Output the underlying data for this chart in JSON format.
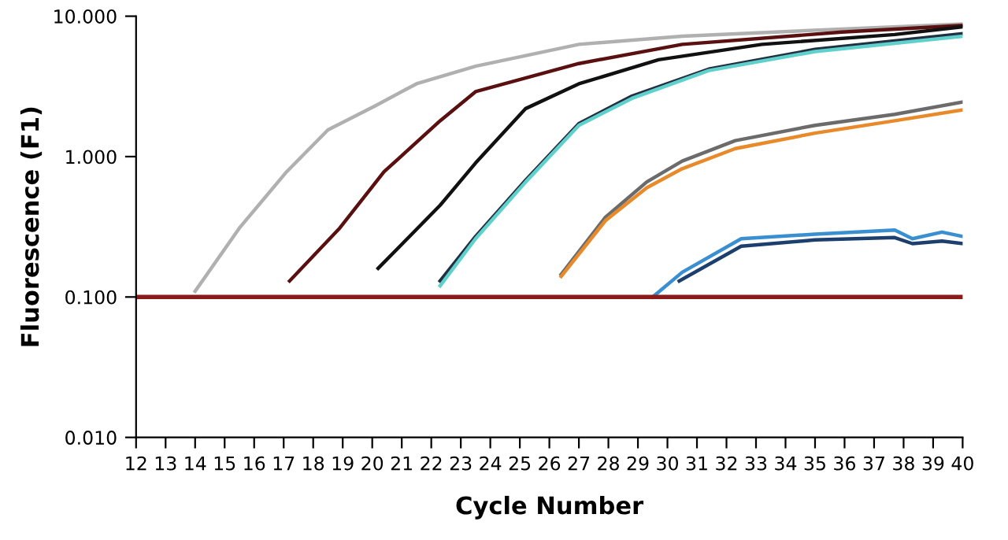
{
  "chart_data": {
    "type": "line",
    "xlabel": "Cycle Number",
    "ylabel": "Fluorescence (F1)",
    "log": "y",
    "xlim": [
      12,
      40
    ],
    "xticks": [
      12,
      13,
      14,
      15,
      16,
      17,
      18,
      19,
      20,
      21,
      22,
      23,
      24,
      25,
      26,
      27,
      28,
      29,
      30,
      31,
      32,
      33,
      34,
      35,
      36,
      37,
      38,
      39,
      40
    ],
    "ylim": [
      0.01,
      10
    ],
    "yticks": [
      {
        "value": 0.01,
        "label": "0.010"
      },
      {
        "value": 0.1,
        "label": "0.100"
      },
      {
        "value": 1,
        "label": "1.000"
      },
      {
        "value": 10,
        "label": "10.000"
      }
    ],
    "grid": false,
    "legend": false,
    "marker": "none",
    "line_style": "solid",
    "ref_lines": [
      {
        "axis": "y",
        "value": 0.1,
        "color": "#8b1a1a"
      }
    ],
    "series": [
      {
        "color": "#b0b0b0",
        "x": [
          14.0,
          15.5,
          17.1,
          18.5,
          20.1,
          21.5,
          23.5,
          27.0,
          30.5,
          35.9,
          40
        ],
        "values": [
          0.11,
          0.31,
          0.78,
          1.55,
          2.3,
          3.3,
          4.4,
          6.3,
          7.2,
          8.1,
          8.8
        ]
      },
      {
        "color": "#5a1010",
        "x": [
          17.2,
          18.9,
          20.4,
          22.3,
          23.5,
          27.0,
          30.5,
          35.9,
          40
        ],
        "values": [
          0.13,
          0.31,
          0.78,
          1.8,
          2.9,
          4.6,
          6.3,
          7.7,
          8.6
        ]
      },
      {
        "color": "#111111",
        "x": [
          20.2,
          22.3,
          23.5,
          25.2,
          27.0,
          29.7,
          33.2,
          37.7,
          40
        ],
        "values": [
          0.16,
          0.45,
          0.9,
          2.2,
          3.3,
          4.9,
          6.3,
          7.4,
          8.4
        ]
      },
      {
        "color": "#203040",
        "x": [
          22.3,
          23.5,
          25.2,
          27.0,
          28.8,
          31.4,
          35.0,
          40
        ],
        "values": [
          0.13,
          0.27,
          0.68,
          1.72,
          2.7,
          4.2,
          5.8,
          7.5
        ]
      },
      {
        "color": "#5fd0cc",
        "x": [
          22.3,
          23.5,
          25.2,
          27.0,
          28.8,
          31.4,
          35.0,
          40
        ],
        "values": [
          0.12,
          0.26,
          0.66,
          1.67,
          2.6,
          4.1,
          5.6,
          7.2
        ]
      },
      {
        "color": "#6b6b6b",
        "x": [
          26.4,
          27.9,
          29.3,
          30.5,
          32.3,
          35.0,
          37.7,
          40
        ],
        "values": [
          0.145,
          0.37,
          0.66,
          0.93,
          1.3,
          1.67,
          2.0,
          2.45
        ]
      },
      {
        "color": "#e8892a",
        "x": [
          26.4,
          27.9,
          29.3,
          30.5,
          32.3,
          35.0,
          37.7,
          40
        ],
        "values": [
          0.14,
          0.35,
          0.6,
          0.82,
          1.14,
          1.47,
          1.8,
          2.15
        ]
      },
      {
        "color": "#3a8fd0",
        "x": [
          29.5,
          30.5,
          32.5,
          35.0,
          37.7,
          38.3,
          39.3,
          40
        ],
        "values": [
          0.1,
          0.15,
          0.26,
          0.28,
          0.3,
          0.26,
          0.29,
          0.27
        ]
      },
      {
        "color": "#1c3f6e",
        "x": [
          30.4,
          32.5,
          35.0,
          37.7,
          38.3,
          39.3,
          40
        ],
        "values": [
          0.13,
          0.23,
          0.255,
          0.265,
          0.24,
          0.25,
          0.24
        ]
      }
    ]
  }
}
